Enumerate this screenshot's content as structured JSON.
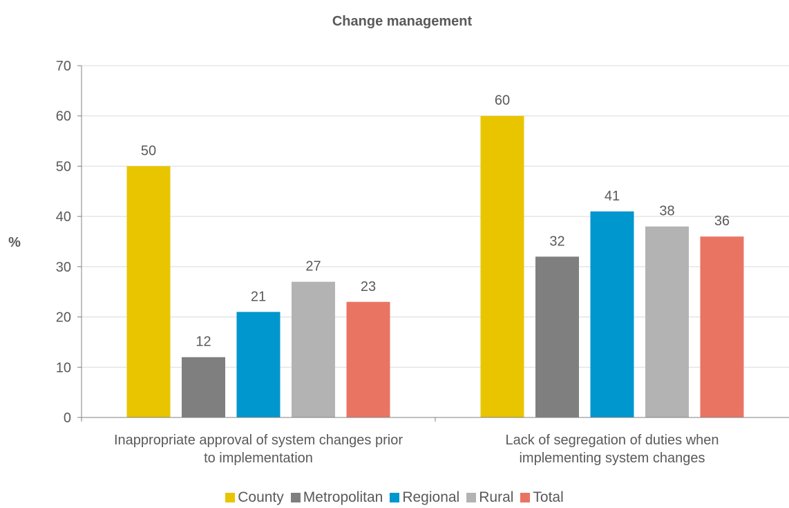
{
  "chart_data": {
    "type": "bar",
    "title": "Change management",
    "ylabel": "%",
    "xlabel": "",
    "ylim": [
      0,
      70
    ],
    "yticks": [
      0,
      10,
      20,
      30,
      40,
      50,
      60,
      70
    ],
    "grid": true,
    "legend_position": "bottom",
    "categories": [
      [
        "Inappropriate approval of system changes prior",
        "to implementation"
      ],
      [
        "Lack of segregation of duties when",
        "implementing system changes"
      ]
    ],
    "series": [
      {
        "name": "County",
        "color": "#E9C500",
        "values": [
          50,
          60
        ]
      },
      {
        "name": "Metropolitan",
        "color": "#7F7F7F",
        "values": [
          12,
          32
        ]
      },
      {
        "name": "Regional",
        "color": "#0096CE",
        "values": [
          21,
          41
        ]
      },
      {
        "name": "Rural",
        "color": "#B3B3B3",
        "values": [
          27,
          38
        ]
      },
      {
        "name": "Total",
        "color": "#EA7462",
        "values": [
          23,
          36
        ]
      }
    ]
  }
}
